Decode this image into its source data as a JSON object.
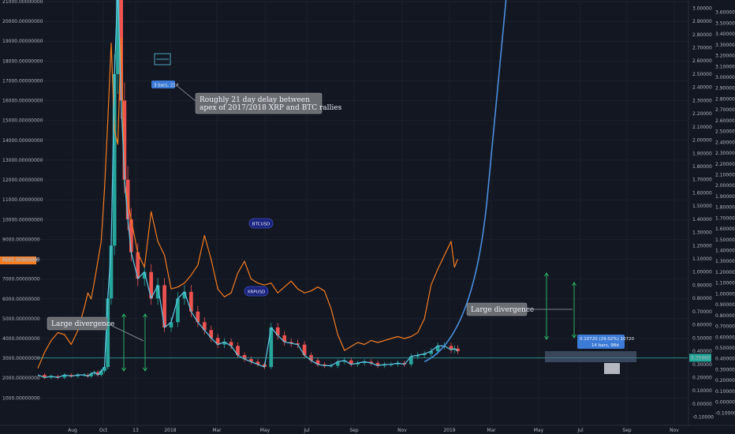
{
  "chart_data": {
    "type": "line",
    "x_labels": [
      "Aug",
      "Oct",
      "13",
      "2018",
      "Mar",
      "May",
      "Jul",
      "Sep",
      "Nov",
      "2019",
      "Mar",
      "May",
      "Jul",
      "Sep",
      "Nov"
    ],
    "left_axis": {
      "ticks": [
        "1000.00000000",
        "2000.00000000",
        "3000.00000000",
        "4000.00000000",
        "5000.00000000",
        "6000.00000000",
        "7000.00000000",
        "8000.00000000",
        "9000.00000000",
        "10000.00000000",
        "11000.00000000",
        "12000.00000000",
        "13000.00000000",
        "14000.00000000",
        "15000.00000000",
        "16000.00000000",
        "17000.00000000",
        "18000.00000000",
        "19000.00000000",
        "20000.00000000",
        "21000.00000000"
      ],
      "ylim": [
        -300,
        21000
      ]
    },
    "right_axis_outer": {
      "ticks": [
        "-0.10000",
        "0.00000",
        "0.10000",
        "0.20000",
        "0.30000",
        "0.40000",
        "0.50000",
        "0.60000",
        "0.70000",
        "0.80000",
        "0.90000",
        "1.00000",
        "1.10000",
        "1.20000",
        "1.30000",
        "1.40000",
        "1.50000",
        "1.60000",
        "1.70000",
        "1.80000",
        "1.90000",
        "2.00000",
        "2.10000",
        "2.20000",
        "2.30000",
        "2.40000",
        "2.50000",
        "2.60000",
        "2.70000",
        "2.80000",
        "2.90000",
        "3.00000",
        "3.10000",
        "3.20000",
        "3.30000",
        "3.40000",
        "3.50000",
        "3.60000"
      ],
      "ylim": [
        -0.2,
        3.7
      ]
    },
    "right_axis_inner": {
      "ticks": [
        "-0.10000",
        "0.00000",
        "0.10000",
        "0.20000",
        "0.30000",
        "0.40000",
        "0.50000",
        "0.60000",
        "0.70000",
        "0.80000",
        "0.90000",
        "1.00000",
        "1.10000",
        "1.20000",
        "1.30000",
        "1.40000",
        "1.50000",
        "1.60000",
        "1.70000",
        "1.80000",
        "1.90000",
        "2.00000",
        "2.10000",
        "2.20000",
        "2.30000",
        "2.40000",
        "2.50000",
        "2.60000",
        "2.70000",
        "2.80000",
        "2.90000",
        "3.00000"
      ],
      "ylim": [
        -0.15,
        3.05
      ]
    },
    "series": [
      {
        "name": "BTCUSD",
        "color": "#f57c1f",
        "x": [
          0,
          4,
          8,
          12,
          16,
          20,
          24,
          28,
          30,
          32,
          34,
          36,
          38,
          40,
          42,
          44,
          46,
          48,
          50,
          52,
          54,
          56,
          60,
          64,
          68,
          72,
          76,
          80,
          84,
          88,
          92,
          96,
          100,
          104,
          108,
          112,
          116,
          120,
          124,
          128,
          132,
          136,
          140,
          144,
          148,
          152,
          156,
          160,
          164,
          168,
          172,
          176,
          180,
          184,
          188,
          192,
          196,
          200,
          204,
          208,
          212,
          216,
          220,
          224,
          228,
          232,
          236,
          240,
          244,
          248,
          250,
          252
        ],
        "y": [
          2500,
          3300,
          3900,
          4300,
          4200,
          3700,
          4400,
          5600,
          6300,
          6000,
          6900,
          7900,
          8900,
          11500,
          15000,
          18900,
          14500,
          13800,
          19200,
          11800,
          11000,
          10000,
          8300,
          7600,
          10400,
          8900,
          8200,
          6500,
          6600,
          6800,
          7200,
          7700,
          9200,
          8000,
          6500,
          6100,
          6300,
          7300,
          7900,
          7000,
          6800,
          6700,
          6800,
          6300,
          6600,
          6900,
          6500,
          6300,
          6400,
          6600,
          6400,
          5500,
          4200,
          3400,
          3600,
          3800,
          3700,
          3900,
          3800,
          3900,
          4000,
          4100,
          4000,
          4100,
          4300,
          5000,
          6700,
          7500,
          8200,
          8900,
          7600,
          8000
        ]
      },
      {
        "name": "XRPUSD",
        "color": "#5ec8e6",
        "x": [
          0,
          4,
          8,
          12,
          16,
          20,
          24,
          28,
          30,
          32,
          34,
          36,
          38,
          40,
          42,
          44,
          46,
          48,
          50,
          52,
          54,
          56,
          60,
          64,
          68,
          72,
          76,
          80,
          84,
          88,
          92,
          96,
          100,
          104,
          108,
          112,
          116,
          120,
          124,
          128,
          132,
          136,
          140,
          144,
          148,
          152,
          156,
          160,
          164,
          168,
          172,
          176,
          180,
          184,
          188,
          192,
          196,
          200,
          204,
          208,
          212,
          216,
          220,
          224,
          228,
          232,
          236,
          240,
          244,
          248,
          250,
          252
        ],
        "y": [
          0.22,
          0.2,
          0.21,
          0.2,
          0.22,
          0.21,
          0.22,
          0.22,
          0.21,
          0.23,
          0.24,
          0.22,
          0.25,
          0.28,
          0.8,
          1.2,
          2.5,
          3.2,
          2.3,
          1.7,
          1.4,
          1.15,
          0.95,
          1.0,
          0.8,
          0.9,
          0.58,
          0.62,
          0.8,
          0.85,
          0.7,
          0.62,
          0.56,
          0.5,
          0.45,
          0.47,
          0.44,
          0.37,
          0.34,
          0.32,
          0.3,
          0.28,
          0.58,
          0.52,
          0.47,
          0.46,
          0.45,
          0.37,
          0.33,
          0.3,
          0.29,
          0.29,
          0.32,
          0.33,
          0.3,
          0.31,
          0.32,
          0.31,
          0.29,
          0.3,
          0.3,
          0.31,
          0.3,
          0.36,
          0.37,
          0.38,
          0.4,
          0.44,
          0.44,
          0.41,
          0.42,
          0.4
        ]
      }
    ],
    "annotations": {
      "apex_note": "Roughly 21 day delay between apex of 2017/2018 XRP and BTC rallies",
      "apex_range": "3 bars, 21d",
      "btc_label": "BTCUSD",
      "xrp_label": "XRPUSD",
      "left_divergence": "Large divergence",
      "right_divergence": "Large divergence",
      "measure_line1": "0.10720 (29.02%) 10720",
      "measure_line2": "14 bars, 98d",
      "btc_price_marker": "7941.30305400",
      "xrp_price_marker": "0.35460"
    },
    "colors": {
      "background": "#131722",
      "grid": "#1f2430",
      "candle_up": "#26a69a",
      "candle_down": "#ef5350",
      "btc_line": "#f57c1f",
      "xrp_line": "#5ec8e6",
      "projection_line": "#4a8fe0",
      "price_line": "#2ea2a2",
      "divergence_arrow": "#2ebd6a",
      "callout_bg": "#6a6d72"
    }
  }
}
